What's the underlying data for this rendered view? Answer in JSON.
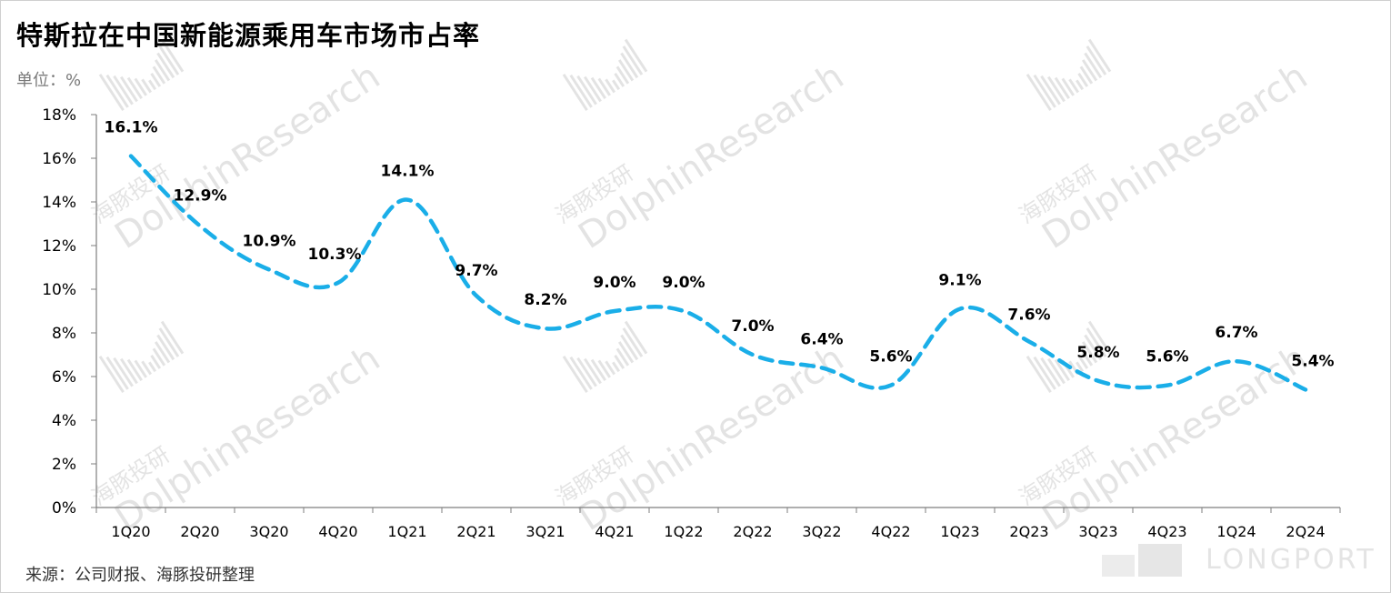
{
  "header": {
    "title": "特斯拉在中国新能源乘用车市场市占率",
    "unit": "单位：%"
  },
  "footer": {
    "source": "来源：公司财报、海豚投研整理"
  },
  "watermark": {
    "cn": "海豚投研",
    "en": "DolphinResearch",
    "brand": "LONGPORT"
  },
  "colors": {
    "line": "#1aaee8",
    "axis": "#7f7f7f",
    "text": "#000000"
  },
  "chart_data": {
    "type": "line",
    "title": "特斯拉在中国新能源乘用车市场市占率",
    "ylabel": "单位：%",
    "categories": [
      "1Q20",
      "2Q20",
      "3Q20",
      "4Q20",
      "1Q21",
      "2Q21",
      "3Q21",
      "4Q21",
      "1Q22",
      "2Q22",
      "3Q22",
      "4Q22",
      "1Q23",
      "2Q23",
      "3Q23",
      "4Q23",
      "1Q24",
      "2Q24"
    ],
    "series": [
      {
        "values": [
          16.1,
          12.9,
          10.9,
          10.3,
          14.1,
          9.7,
          8.2,
          9.0,
          9.0,
          7.0,
          6.4,
          5.6,
          9.1,
          7.6,
          5.8,
          5.6,
          6.7,
          5.4
        ],
        "labels": [
          "16.1%",
          "12.9%",
          "10.9%",
          "10.3%",
          "14.1%",
          "9.7%",
          "8.2%",
          "9.0%",
          "9.0%",
          "7.0%",
          "6.4%",
          "5.6%",
          "9.1%",
          "7.6%",
          "5.8%",
          "5.6%",
          "6.7%",
          "5.4%"
        ]
      }
    ],
    "ylim": [
      0,
      18
    ],
    "yticks": [
      "0%",
      "2%",
      "4%",
      "6%",
      "8%",
      "10%",
      "12%",
      "14%",
      "16%",
      "18%"
    ],
    "line_style": "dashed-smooth",
    "grid": false,
    "legend": "none"
  }
}
